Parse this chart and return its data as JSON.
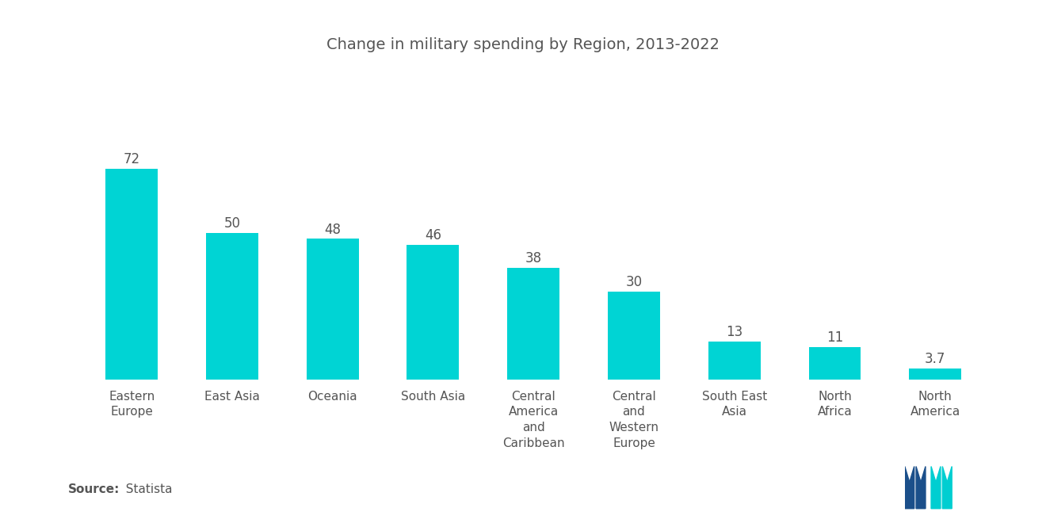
{
  "title": "Change in military spending by Region, 2013-2022",
  "categories": [
    "Eastern\nEurope",
    "East Asia",
    "Oceania",
    "South Asia",
    "Central\nAmerica\nand\nCaribbean",
    "Central\nand\nWestern\nEurope",
    "South East\nAsia",
    "North\nAfrica",
    "North\nAmerica"
  ],
  "values": [
    72,
    50,
    48,
    46,
    38,
    30,
    13,
    11,
    3.7
  ],
  "bar_color": "#00D4D4",
  "background_color": "#ffffff",
  "source_bold": "Source:",
  "source_light": "  Statista",
  "title_fontsize": 14,
  "label_fontsize": 11,
  "value_fontsize": 12,
  "source_fontsize": 11,
  "text_color": "#555555",
  "logo_dark": "#1B4F8A",
  "logo_teal": "#00CED1"
}
